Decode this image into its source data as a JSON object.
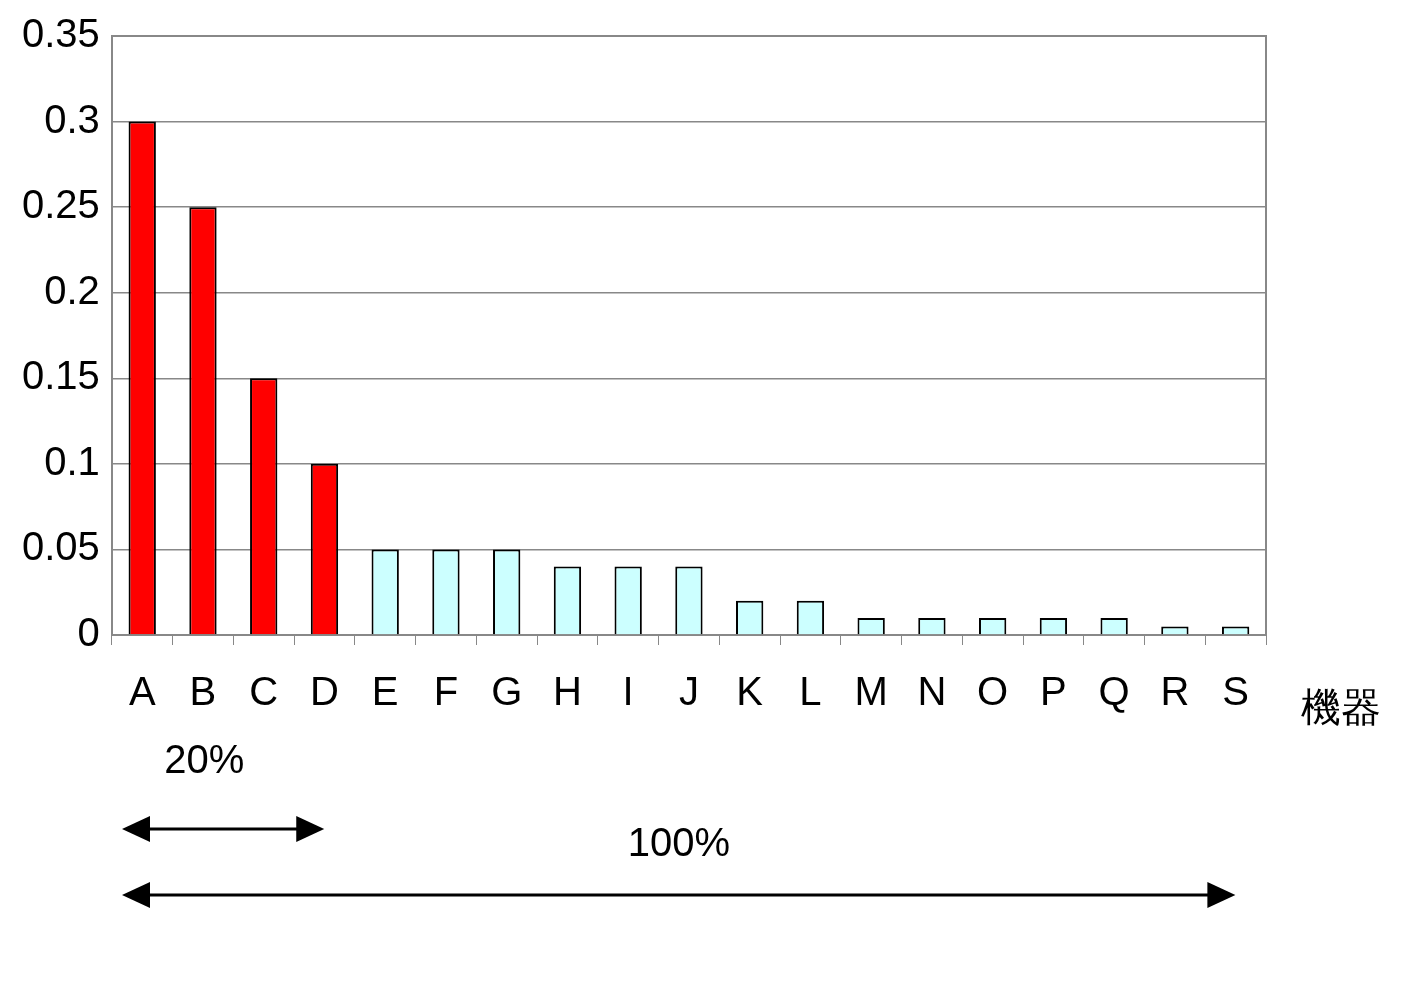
{
  "chart_data": {
    "type": "bar",
    "xlabel": "機器",
    "categories": [
      "A",
      "B",
      "C",
      "D",
      "E",
      "F",
      "G",
      "H",
      "I",
      "J",
      "K",
      "L",
      "M",
      "N",
      "O",
      "P",
      "Q",
      "R",
      "S"
    ],
    "values": [
      0.3,
      0.25,
      0.15,
      0.1,
      0.05,
      0.05,
      0.05,
      0.04,
      0.04,
      0.04,
      0.02,
      0.02,
      0.01,
      0.01,
      0.01,
      0.01,
      0.01,
      0.005,
      0.005
    ],
    "colors": [
      "#ff0000",
      "#ff0000",
      "#ff0000",
      "#ff0000",
      "#ccffff",
      "#ccffff",
      "#ccffff",
      "#ccffff",
      "#ccffff",
      "#ccffff",
      "#ccffff",
      "#ccffff",
      "#ccffff",
      "#ccffff",
      "#ccffff",
      "#ccffff",
      "#ccffff",
      "#ccffff",
      "#ccffff"
    ],
    "ylim": [
      0,
      0.35
    ],
    "yticks": [
      0,
      0.05,
      0.1,
      0.15,
      0.2,
      0.25,
      0.3,
      0.35
    ],
    "grid": "y",
    "legend": false,
    "annotations": [
      "20%",
      "100%"
    ]
  }
}
